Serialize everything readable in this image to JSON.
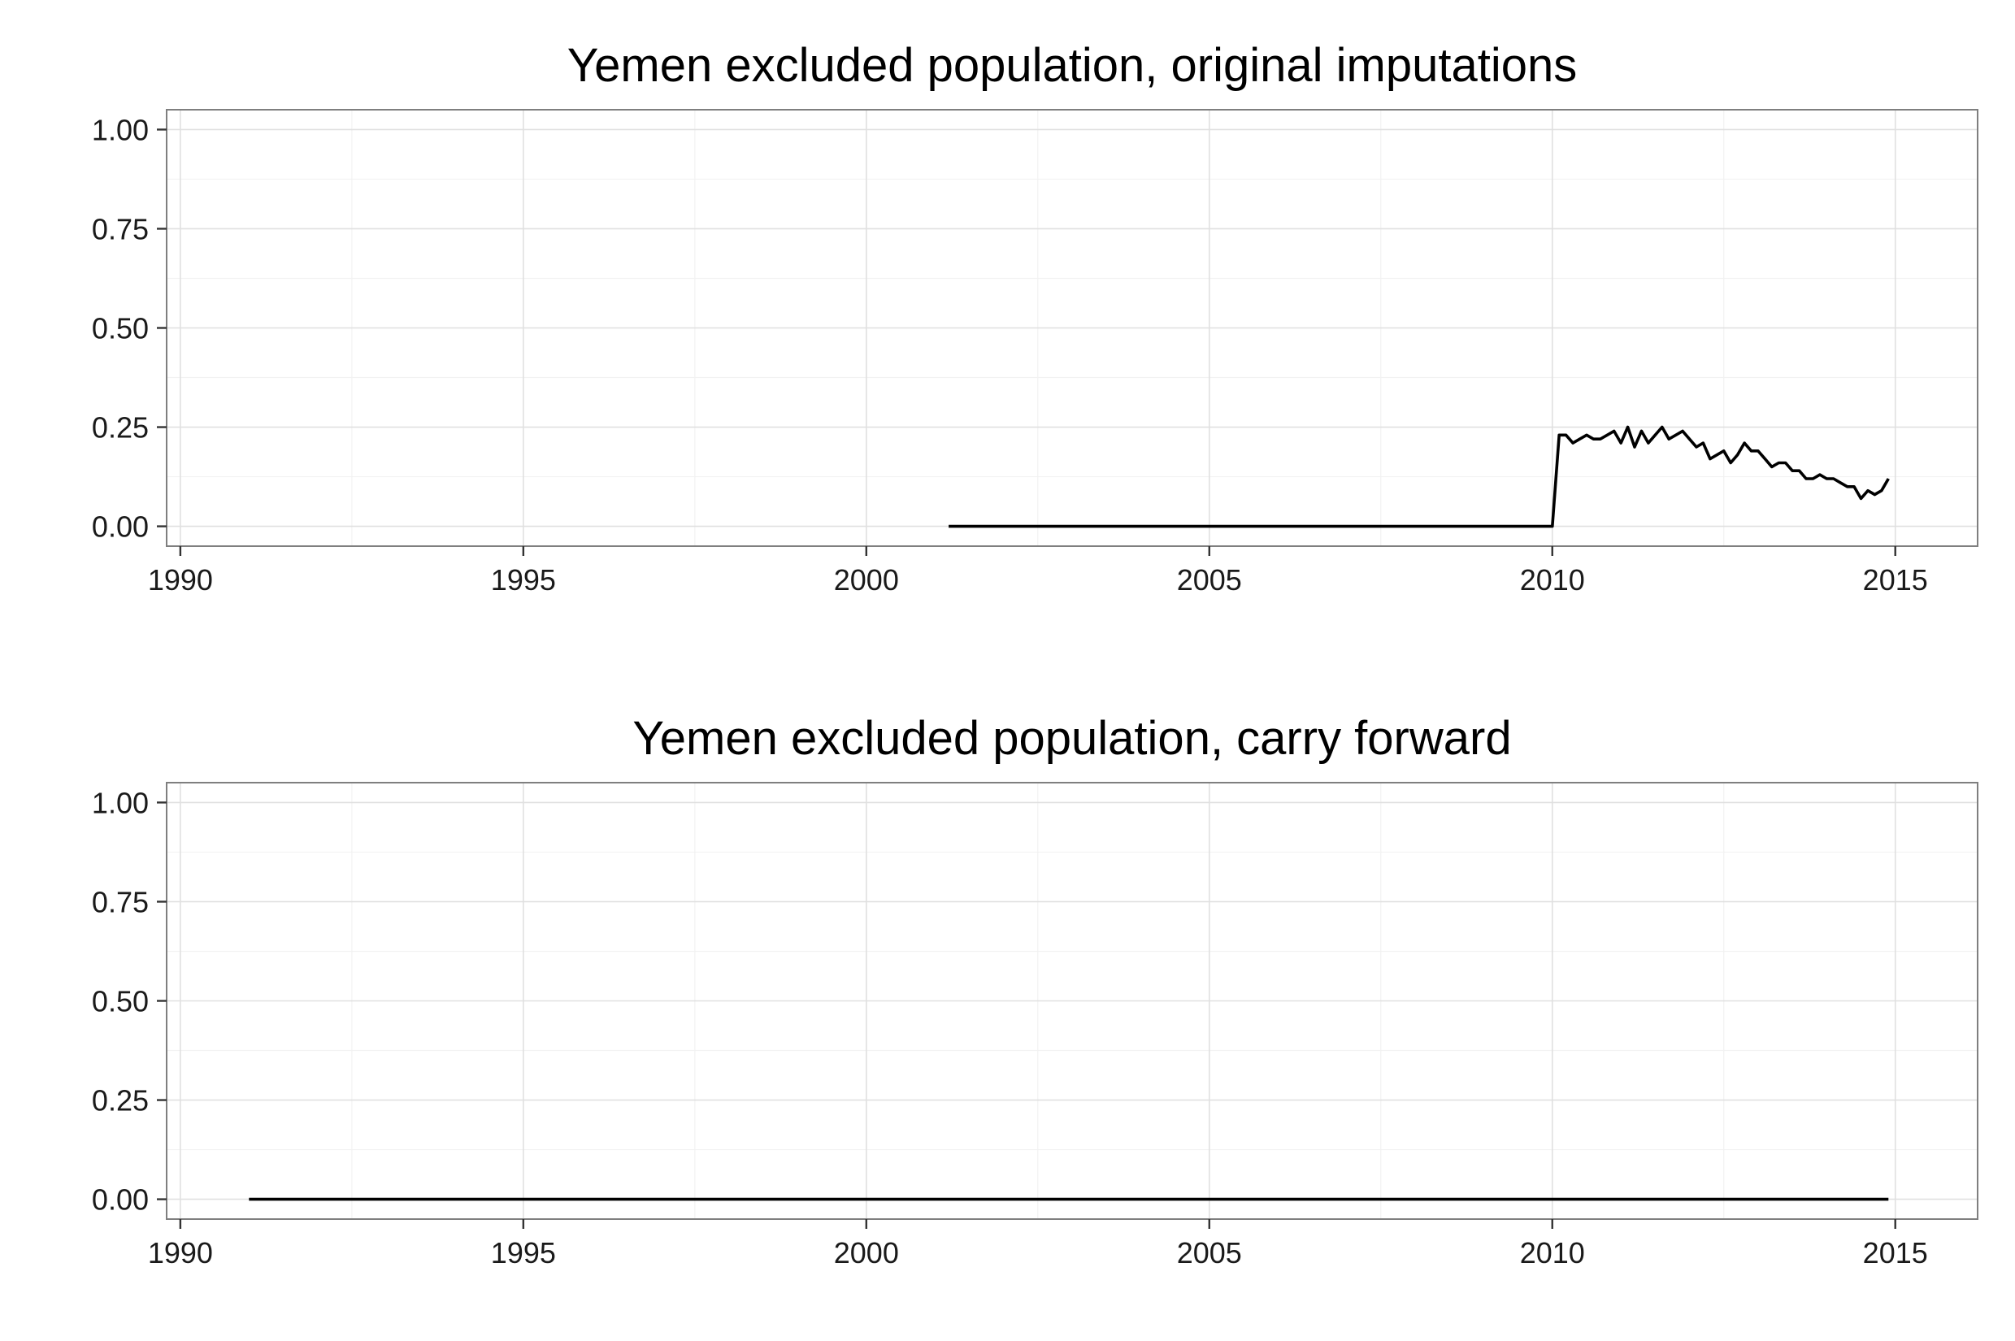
{
  "chart_data": [
    {
      "type": "line",
      "title": "Yemen excluded population, original imputations",
      "xlabel": "",
      "ylabel": "",
      "xlim": [
        1989.8,
        2016.2
      ],
      "ylim": [
        -0.05,
        1.05
      ],
      "x_ticks": [
        "1990",
        "1995",
        "2000",
        "2005",
        "2010",
        "2015"
      ],
      "y_ticks": [
        "0.00",
        "0.25",
        "0.50",
        "0.75",
        "1.00"
      ],
      "grid": true,
      "legend": "none",
      "line_color": "#000000",
      "series": [
        {
          "x": [
            2001.2,
            2010.0,
            2010.1,
            2010.2,
            2010.3,
            2010.4,
            2010.5,
            2010.6,
            2010.7,
            2010.8,
            2010.9,
            2011.0,
            2011.1,
            2011.2,
            2011.3,
            2011.4,
            2011.5,
            2011.6,
            2011.7,
            2011.8,
            2011.9,
            2012.0,
            2012.1,
            2012.2,
            2012.3,
            2012.4,
            2012.5,
            2012.6,
            2012.7,
            2012.8,
            2012.9,
            2013.0,
            2013.1,
            2013.2,
            2013.3,
            2013.4,
            2013.5,
            2013.6,
            2013.7,
            2013.8,
            2013.9,
            2014.0,
            2014.1,
            2014.2,
            2014.3,
            2014.4,
            2014.5,
            2014.6,
            2014.7,
            2014.8,
            2014.9
          ],
          "y": [
            0.0,
            0.0,
            0.23,
            0.23,
            0.21,
            0.22,
            0.23,
            0.22,
            0.22,
            0.23,
            0.24,
            0.21,
            0.25,
            0.2,
            0.24,
            0.21,
            0.23,
            0.25,
            0.22,
            0.23,
            0.24,
            0.22,
            0.2,
            0.21,
            0.17,
            0.18,
            0.19,
            0.16,
            0.18,
            0.21,
            0.19,
            0.19,
            0.17,
            0.15,
            0.16,
            0.16,
            0.14,
            0.14,
            0.12,
            0.12,
            0.13,
            0.12,
            0.12,
            0.11,
            0.1,
            0.1,
            0.07,
            0.09,
            0.08,
            0.09,
            0.12
          ]
        }
      ]
    },
    {
      "type": "line",
      "title": "Yemen excluded population, carry forward",
      "xlabel": "",
      "ylabel": "",
      "xlim": [
        1989.8,
        2016.2
      ],
      "ylim": [
        -0.05,
        1.05
      ],
      "x_ticks": [
        "1990",
        "1995",
        "2000",
        "2005",
        "2010",
        "2015"
      ],
      "y_ticks": [
        "0.00",
        "0.25",
        "0.50",
        "0.75",
        "1.00"
      ],
      "grid": true,
      "legend": "none",
      "line_color": "#000000",
      "series": [
        {
          "x": [
            1991.0,
            2014.9
          ],
          "y": [
            0.0,
            0.0
          ]
        }
      ]
    }
  ]
}
